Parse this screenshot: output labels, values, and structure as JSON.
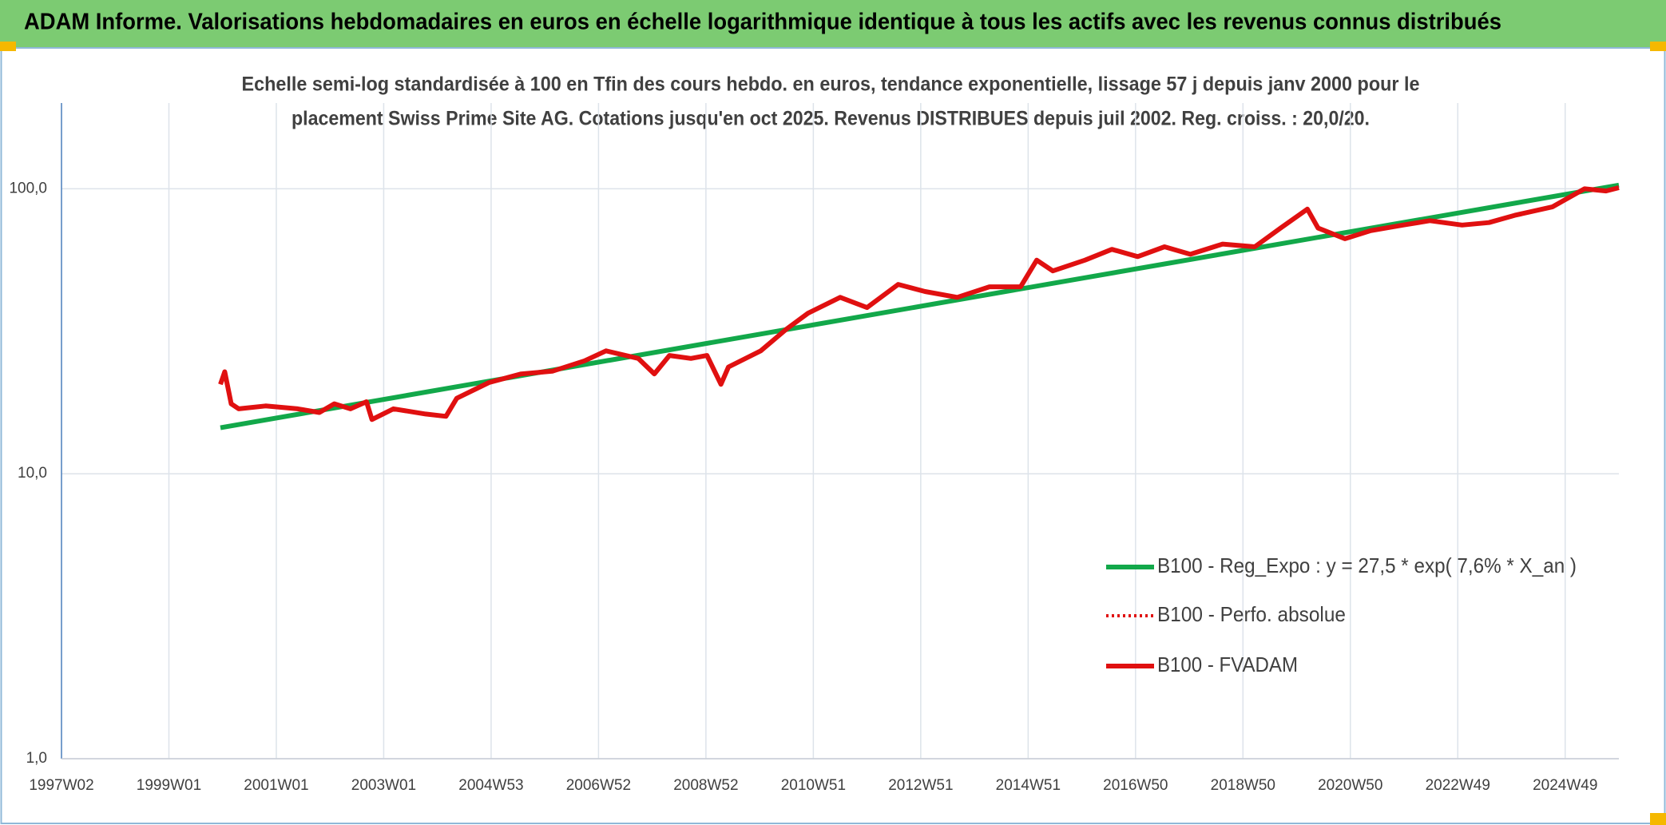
{
  "chart_data": {
    "type": "line",
    "title": "ADAM Informe. Valorisations hebdomadaires en euros en échelle logarithmique identique à tous les actifs avec les revenus connus distribués",
    "subtitle": [
      "Echelle semi-log standardisée à 100 en Tfin des cours hebdo. en euros, tendance exponentielle, lissage 57 j depuis janv 2000 pour le",
      "placement Swiss Prime Site AG. Cotations jusqu'en oct 2025. Revenus DISTRIBUES depuis juil 2002. Reg. croiss. : 20,0/20."
    ],
    "log_scale": true,
    "grid": true,
    "legend": "right",
    "xlim": [
      0,
      1450
    ],
    "xticks": [
      {
        "value": 0,
        "label": "1997W02"
      },
      {
        "value": 100,
        "label": "1999W01"
      },
      {
        "value": 200,
        "label": "2001W01"
      },
      {
        "value": 300,
        "label": "2003W01"
      },
      {
        "value": 400,
        "label": "2004W53"
      },
      {
        "value": 500,
        "label": "2006W52"
      },
      {
        "value": 600,
        "label": "2008W52"
      },
      {
        "value": 700,
        "label": "2010W51"
      },
      {
        "value": 800,
        "label": "2012W51"
      },
      {
        "value": 900,
        "label": "2014W51"
      },
      {
        "value": 1000,
        "label": "2016W50"
      },
      {
        "value": 1100,
        "label": "2018W50"
      },
      {
        "value": 1200,
        "label": "2020W50"
      },
      {
        "value": 1300,
        "label": "2022W49"
      },
      {
        "value": 1400,
        "label": "2024W49"
      }
    ],
    "ylim": [
      1,
      200
    ],
    "yticks": [
      {
        "value": 1,
        "label": "1,0"
      },
      {
        "value": 10,
        "label": "10,0"
      },
      {
        "value": 100,
        "label": "100,0"
      }
    ],
    "series": [
      {
        "name": "B100 - Reg_Expo : y = 27,5 * exp( 7,6% *  X_an )",
        "color": "#12a84a",
        "style": "solid",
        "x": [
          148,
          1450
        ],
        "values": [
          14.5,
          103
        ]
      },
      {
        "name": "B100 - Perfo. absolue",
        "color": "#e01010",
        "style": "dotted",
        "x": [
          148,
          152,
          158,
          165,
          190,
          220,
          240,
          254,
          269,
          284,
          289,
          309,
          339,
          358,
          368,
          398,
          428,
          457,
          487,
          507,
          537,
          552,
          566,
          586,
          601,
          614,
          621,
          651,
          675,
          695,
          725,
          750,
          779,
          804,
          834,
          864,
          893,
          908,
          923,
          953,
          978,
          1002,
          1027,
          1051,
          1081,
          1111,
          1135,
          1160,
          1170,
          1195,
          1219,
          1249,
          1274,
          1304,
          1329,
          1353,
          1388,
          1418,
          1438,
          1450
        ],
        "values": [
          20.6,
          22.8,
          17.6,
          16.9,
          17.3,
          16.9,
          16.4,
          17.6,
          16.9,
          17.9,
          15.5,
          16.9,
          16.2,
          15.9,
          18.4,
          20.9,
          22.4,
          22.9,
          24.9,
          27.0,
          25.4,
          22.4,
          26.0,
          25.4,
          26.0,
          20.6,
          23.7,
          27.0,
          32.2,
          36.6,
          41.6,
          38.3,
          46.2,
          43.6,
          41.6,
          45.3,
          45.3,
          56.2,
          51.5,
          56.2,
          61.3,
          57.8,
          62.6,
          58.9,
          64.0,
          62.6,
          72.8,
          84.9,
          72.8,
          66.8,
          71.3,
          74.6,
          77.3,
          74.6,
          76.1,
          80.7,
          86.4,
          100,
          98.3,
          100.9
        ]
      },
      {
        "name": "B100 - FVADAM",
        "color": "#e01010",
        "style": "solid",
        "x": [
          148,
          152,
          158,
          165,
          190,
          220,
          240,
          254,
          269,
          284,
          289,
          309,
          339,
          358,
          368,
          398,
          428,
          457,
          487,
          507,
          537,
          552,
          566,
          586,
          601,
          614,
          621,
          651,
          675,
          695,
          725,
          750,
          779,
          804,
          834,
          864,
          893,
          908,
          923,
          953,
          978,
          1002,
          1027,
          1051,
          1081,
          1111,
          1135,
          1160,
          1170,
          1195,
          1219,
          1249,
          1274,
          1304,
          1329,
          1353,
          1388,
          1418,
          1438,
          1450
        ],
        "values": [
          20.6,
          22.8,
          17.6,
          16.9,
          17.3,
          16.9,
          16.4,
          17.6,
          16.9,
          17.9,
          15.5,
          16.9,
          16.2,
          15.9,
          18.4,
          20.9,
          22.4,
          22.9,
          24.9,
          27.0,
          25.4,
          22.4,
          26.0,
          25.4,
          26.0,
          20.6,
          23.7,
          27.0,
          32.2,
          36.6,
          41.6,
          38.3,
          46.2,
          43.6,
          41.6,
          45.3,
          45.3,
          56.2,
          51.5,
          56.2,
          61.3,
          57.8,
          62.6,
          58.9,
          64.0,
          62.6,
          72.8,
          84.9,
          72.8,
          66.8,
          71.3,
          74.6,
          77.3,
          74.6,
          76.1,
          80.7,
          86.4,
          100,
          98.3,
          100.9
        ]
      }
    ]
  }
}
